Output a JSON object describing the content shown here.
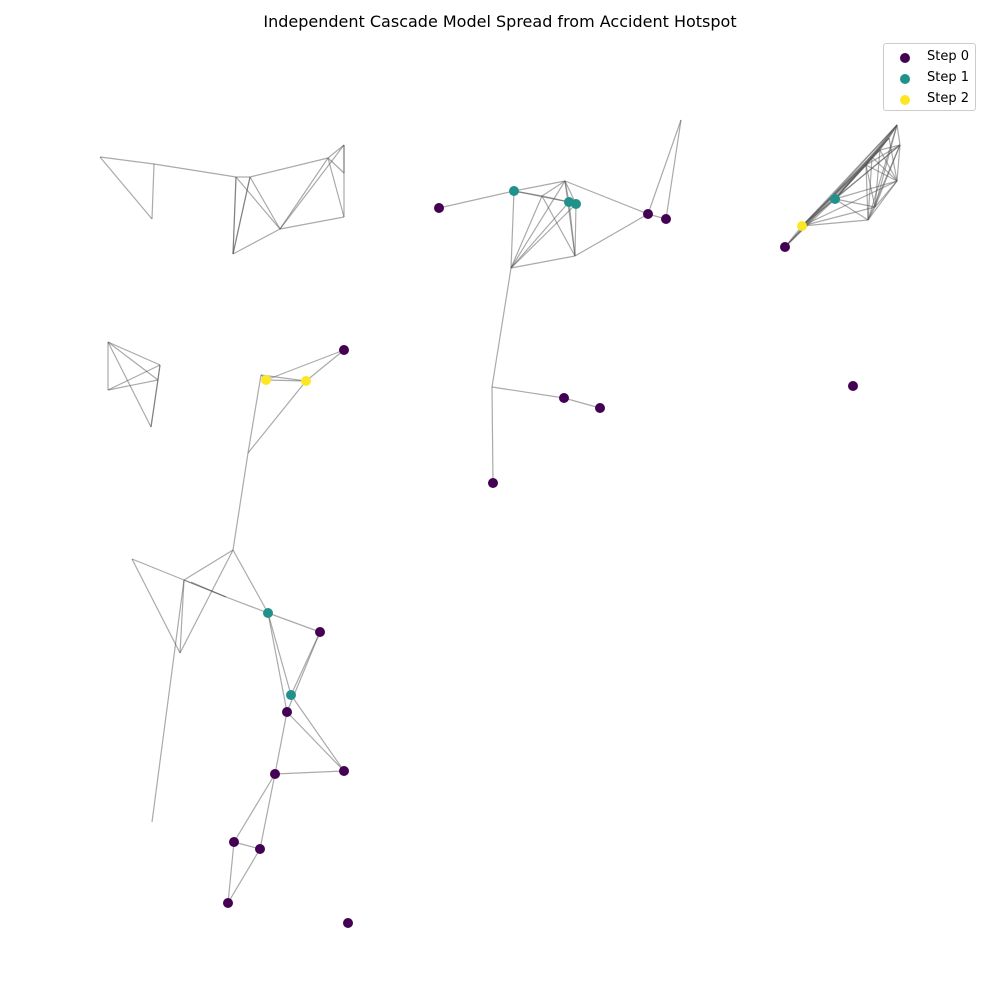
{
  "title": "Independent Cascade Model Spread from Accident Hotspot",
  "legend": [
    {
      "label": "Step 0",
      "color": "#440154"
    },
    {
      "label": "Step 1",
      "color": "#21918c"
    },
    {
      "label": "Step 2",
      "color": "#fde725"
    }
  ],
  "edge_color": "#555555",
  "graph": {
    "nodes": [],
    "edges": []
  }
}
